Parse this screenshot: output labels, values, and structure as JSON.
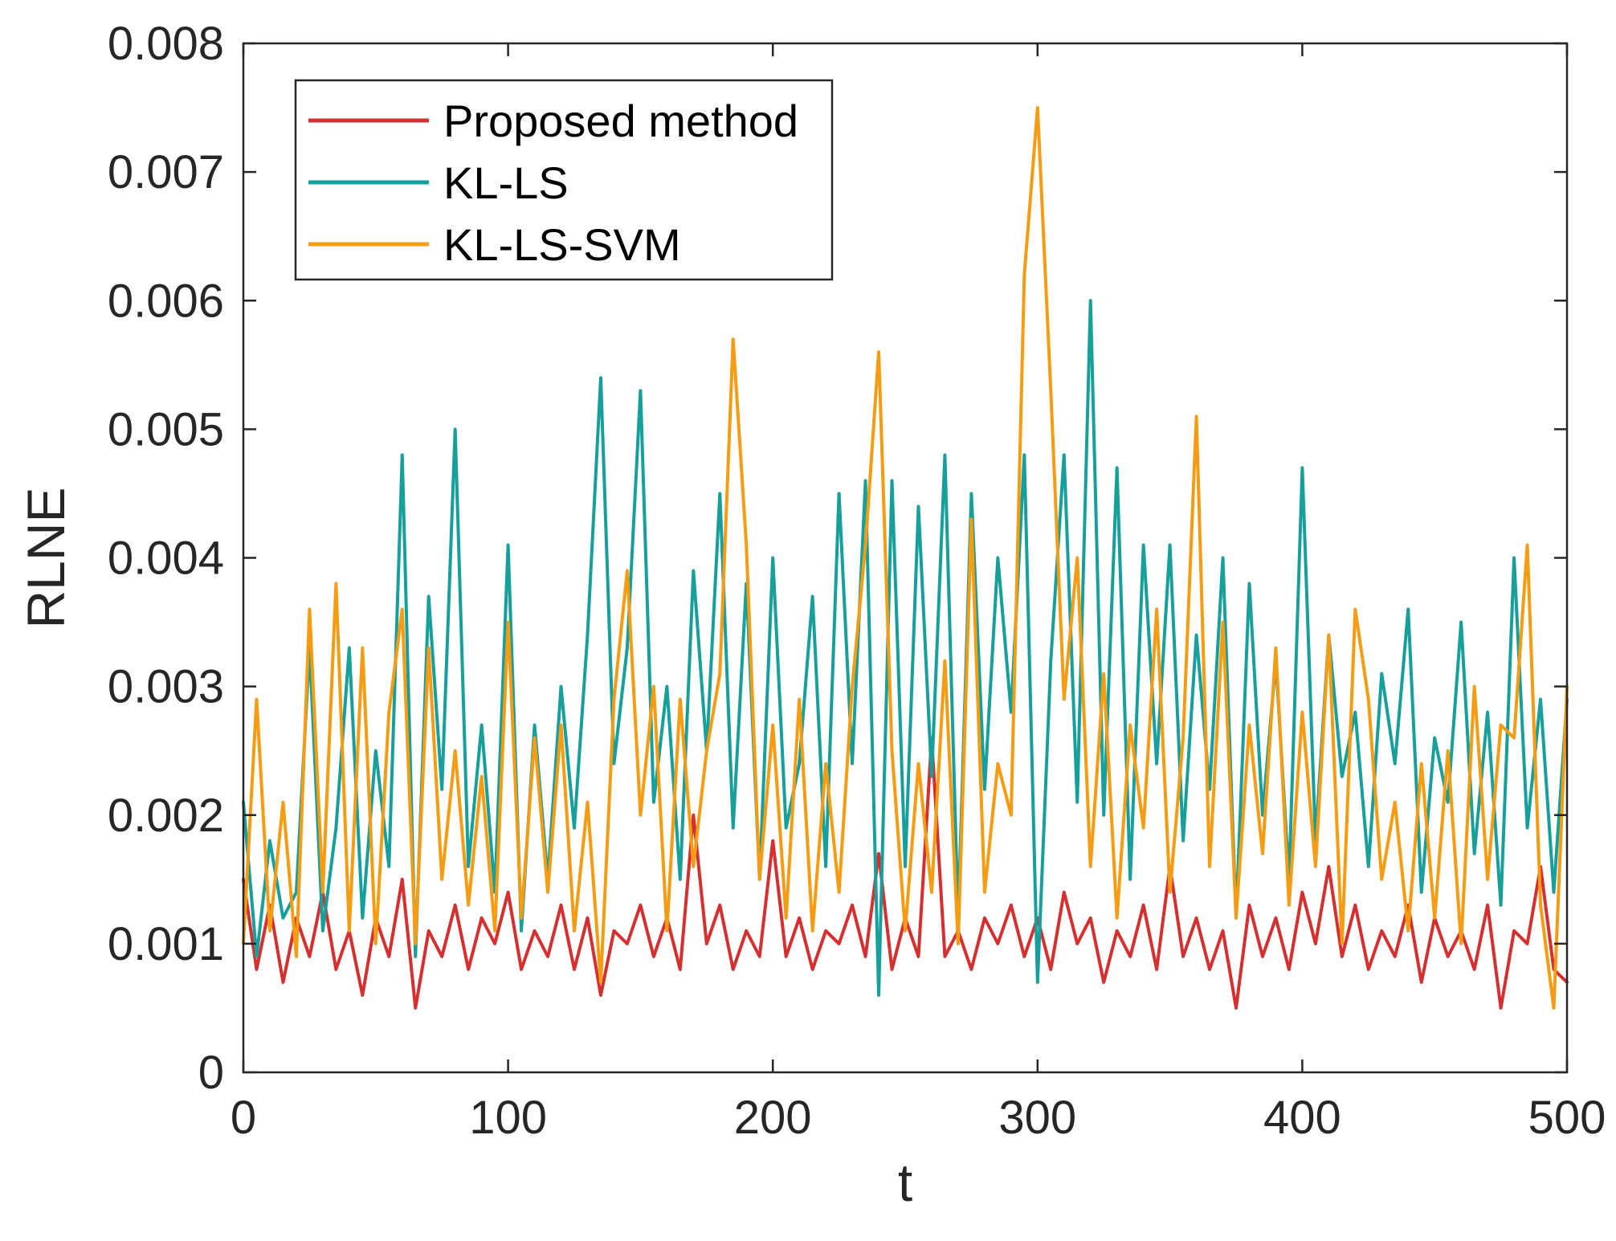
{
  "chart_data": {
    "type": "line",
    "title": "",
    "xlabel": "t",
    "ylabel": "RLNE",
    "xlim": [
      0,
      500
    ],
    "ylim": [
      0,
      0.008
    ],
    "xticks": [
      0,
      100,
      200,
      300,
      400,
      500
    ],
    "yticks": [
      0,
      0.001,
      0.002,
      0.003,
      0.004,
      0.005,
      0.006,
      0.007,
      0.008
    ],
    "xtick_labels": [
      "0",
      "100",
      "200",
      "300",
      "400",
      "500"
    ],
    "ytick_labels": [
      "0",
      "0.001",
      "0.002",
      "0.003",
      "0.004",
      "0.005",
      "0.006",
      "0.007",
      "0.008"
    ],
    "legend_position": "top-left",
    "grid": false,
    "x": [
      0,
      5,
      10,
      15,
      20,
      25,
      30,
      35,
      40,
      45,
      50,
      55,
      60,
      65,
      70,
      75,
      80,
      85,
      90,
      95,
      100,
      105,
      110,
      115,
      120,
      125,
      130,
      135,
      140,
      145,
      150,
      155,
      160,
      165,
      170,
      175,
      180,
      185,
      190,
      195,
      200,
      205,
      210,
      215,
      220,
      225,
      230,
      235,
      240,
      245,
      250,
      255,
      260,
      265,
      270,
      275,
      280,
      285,
      290,
      295,
      300,
      305,
      310,
      315,
      320,
      325,
      330,
      335,
      340,
      345,
      350,
      355,
      360,
      365,
      370,
      375,
      380,
      385,
      390,
      395,
      400,
      405,
      410,
      415,
      420,
      425,
      430,
      435,
      440,
      445,
      450,
      455,
      460,
      465,
      470,
      475,
      480,
      485,
      490,
      495,
      500
    ],
    "series": [
      {
        "name": "Proposed method",
        "color": "#D62F2F",
        "values": [
          0.0015,
          0.0008,
          0.0013,
          0.0007,
          0.0012,
          0.0009,
          0.0014,
          0.0008,
          0.0011,
          0.0006,
          0.0012,
          0.0009,
          0.0015,
          0.0005,
          0.0011,
          0.0009,
          0.0013,
          0.0008,
          0.0012,
          0.001,
          0.0014,
          0.0008,
          0.0011,
          0.0009,
          0.0013,
          0.0008,
          0.0012,
          0.0006,
          0.0011,
          0.001,
          0.0013,
          0.0009,
          0.0012,
          0.0008,
          0.002,
          0.001,
          0.0013,
          0.0008,
          0.0011,
          0.0009,
          0.0018,
          0.0009,
          0.0012,
          0.0008,
          0.0011,
          0.001,
          0.0013,
          0.0009,
          0.0017,
          0.0008,
          0.0012,
          0.0009,
          0.0026,
          0.0009,
          0.0011,
          0.0008,
          0.0012,
          0.001,
          0.0013,
          0.0009,
          0.0012,
          0.0008,
          0.0014,
          0.001,
          0.0012,
          0.0007,
          0.0011,
          0.0009,
          0.0013,
          0.0008,
          0.0016,
          0.0009,
          0.0012,
          0.0008,
          0.0011,
          0.0005,
          0.0013,
          0.0009,
          0.0012,
          0.0008,
          0.0014,
          0.001,
          0.0016,
          0.0009,
          0.0013,
          0.0008,
          0.0011,
          0.0009,
          0.0013,
          0.0007,
          0.0012,
          0.0009,
          0.0011,
          0.0008,
          0.0013,
          0.0005,
          0.0011,
          0.001,
          0.0016,
          0.0008,
          0.0007
        ]
      },
      {
        "name": "KL-LS",
        "color": "#17A09B",
        "values": [
          0.0021,
          0.0009,
          0.0018,
          0.0012,
          0.0014,
          0.0033,
          0.0011,
          0.0019,
          0.0033,
          0.0012,
          0.0025,
          0.0016,
          0.0048,
          0.0009,
          0.0037,
          0.0022,
          0.005,
          0.0016,
          0.0027,
          0.0014,
          0.0041,
          0.0011,
          0.0027,
          0.0015,
          0.003,
          0.0019,
          0.0034,
          0.0054,
          0.0024,
          0.0033,
          0.0053,
          0.0021,
          0.003,
          0.0015,
          0.0039,
          0.0025,
          0.0045,
          0.0019,
          0.0038,
          0.0015,
          0.004,
          0.0019,
          0.0024,
          0.0037,
          0.0016,
          0.0045,
          0.0024,
          0.0046,
          0.0006,
          0.0046,
          0.0016,
          0.0044,
          0.0023,
          0.0048,
          0.0012,
          0.0045,
          0.0022,
          0.004,
          0.0028,
          0.0048,
          0.0007,
          0.0032,
          0.0048,
          0.0021,
          0.006,
          0.002,
          0.0047,
          0.0015,
          0.0041,
          0.0024,
          0.0041,
          0.0018,
          0.0034,
          0.0022,
          0.004,
          0.0012,
          0.0038,
          0.002,
          0.0032,
          0.0015,
          0.0047,
          0.0018,
          0.0034,
          0.0023,
          0.0028,
          0.0016,
          0.0031,
          0.0024,
          0.0036,
          0.0014,
          0.0026,
          0.0021,
          0.0035,
          0.0017,
          0.0028,
          0.0013,
          0.004,
          0.0019,
          0.0029,
          0.0014,
          0.0029
        ]
      },
      {
        "name": "KL-LS-SVM",
        "color": "#F59C12",
        "values": [
          0.001,
          0.0029,
          0.0011,
          0.0021,
          0.0009,
          0.0036,
          0.0014,
          0.0038,
          0.0011,
          0.0033,
          0.001,
          0.0028,
          0.0036,
          0.001,
          0.0033,
          0.0015,
          0.0025,
          0.0013,
          0.0023,
          0.0011,
          0.0035,
          0.0012,
          0.0026,
          0.0014,
          0.0027,
          0.0011,
          0.0021,
          0.0007,
          0.0029,
          0.0039,
          0.002,
          0.003,
          0.0011,
          0.0029,
          0.0016,
          0.0025,
          0.0031,
          0.0057,
          0.0041,
          0.0015,
          0.0027,
          0.0012,
          0.0029,
          0.0011,
          0.0024,
          0.0014,
          0.003,
          0.0041,
          0.0056,
          0.0025,
          0.0011,
          0.0024,
          0.0014,
          0.0032,
          0.001,
          0.0043,
          0.0014,
          0.0024,
          0.002,
          0.0062,
          0.0075,
          0.0053,
          0.0029,
          0.004,
          0.0016,
          0.0031,
          0.0012,
          0.0027,
          0.0019,
          0.0036,
          0.0014,
          0.0026,
          0.0051,
          0.0016,
          0.0035,
          0.0012,
          0.0027,
          0.0017,
          0.0033,
          0.0013,
          0.0028,
          0.0016,
          0.0034,
          0.001,
          0.0036,
          0.0029,
          0.0015,
          0.0021,
          0.0011,
          0.0024,
          0.0012,
          0.0025,
          0.001,
          0.003,
          0.0015,
          0.0027,
          0.0026,
          0.0041,
          0.0013,
          0.0005,
          0.003
        ]
      }
    ]
  }
}
